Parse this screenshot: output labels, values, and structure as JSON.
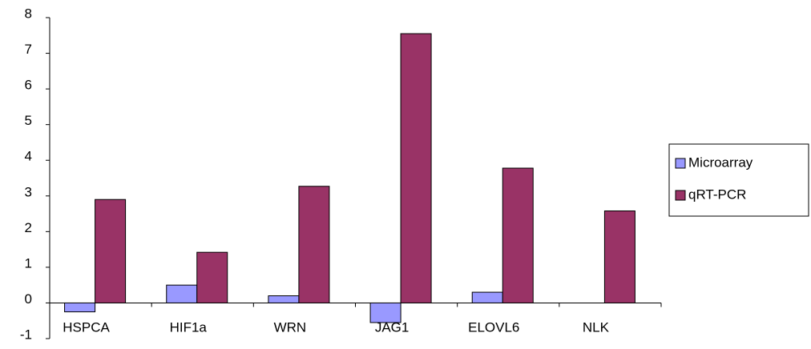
{
  "chart_data": {
    "type": "bar",
    "categories": [
      "HSPCA",
      "HIF1a",
      "WRN",
      "JAG1",
      "ELOVL6",
      "NLK"
    ],
    "series": [
      {
        "name": "Microarray",
        "color": "#9999ff",
        "values": [
          -0.25,
          0.5,
          0.2,
          -0.55,
          0.3,
          0
        ]
      },
      {
        "name": "qRT-PCR",
        "color": "#993366",
        "values": [
          2.9,
          1.42,
          3.27,
          7.55,
          3.78,
          2.58
        ]
      }
    ],
    "ylim": [
      -1,
      8
    ],
    "yticks": [
      -1,
      0,
      1,
      2,
      3,
      4,
      5,
      6,
      7,
      8
    ],
    "grid": false,
    "legend": "right"
  }
}
